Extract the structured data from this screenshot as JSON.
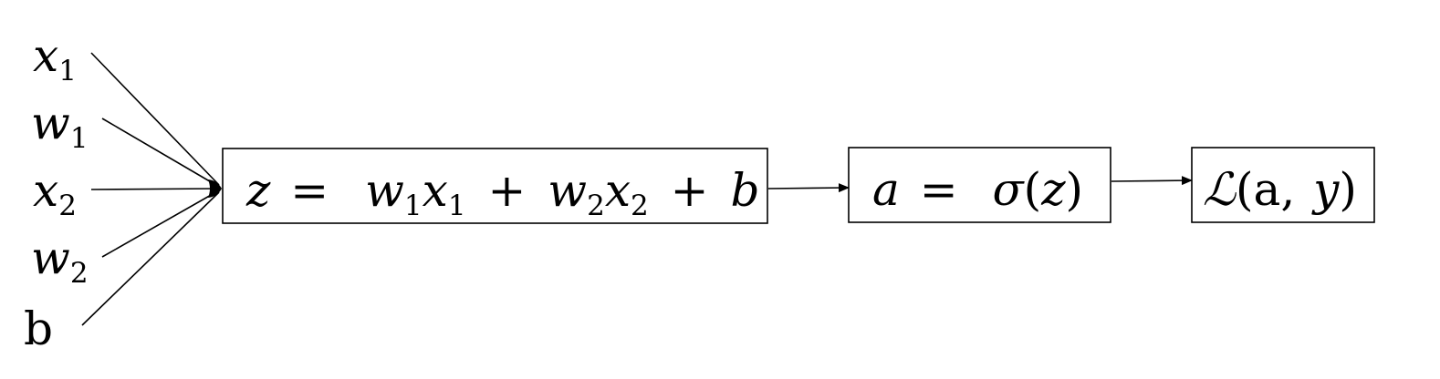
{
  "inputs": [
    {
      "base": "x",
      "sub": "1",
      "italic": true
    },
    {
      "base": "w",
      "sub": "1",
      "italic": true
    },
    {
      "base": "x",
      "sub": "2",
      "italic": true
    },
    {
      "base": "w",
      "sub": "2",
      "italic": true
    },
    {
      "base": "b",
      "sub": "",
      "italic": false
    }
  ],
  "nodes": {
    "linear": {
      "z": "z",
      "eq": "=",
      "w1": "w",
      "w1_sub": "1",
      "x1": "x",
      "x1_sub": "1",
      "plus1": "+",
      "w2": "w",
      "w2_sub": "2",
      "x2": "x",
      "x2_sub": "2",
      "plus2": "+",
      "b": "b"
    },
    "activation": {
      "a": "a",
      "eq": "=",
      "sigma": "σ",
      "lparen": "(",
      "z": "z",
      "rparen": ")"
    },
    "loss": {
      "L": "ℒ",
      "lparen": "(",
      "a": "a",
      "comma": ",",
      "y": "y",
      "rparen": ")"
    }
  }
}
